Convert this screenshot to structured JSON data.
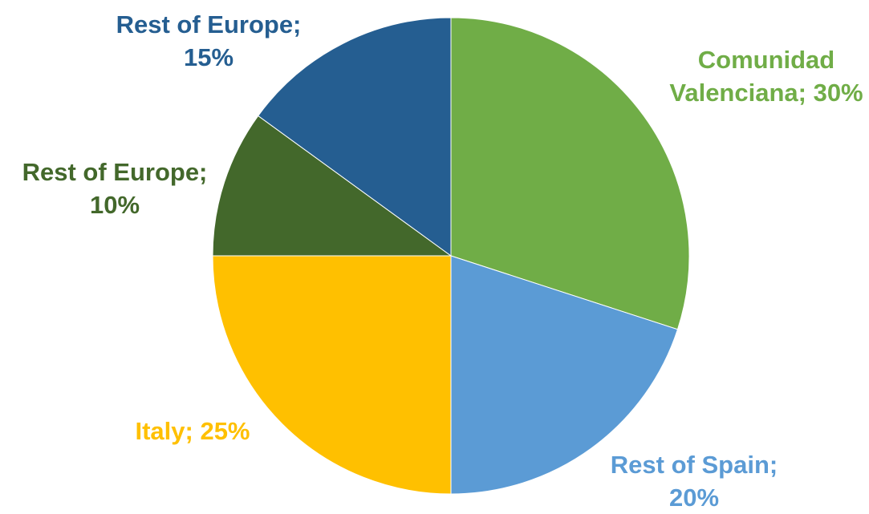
{
  "chart_data": {
    "type": "pie",
    "title": "",
    "start_angle_deg": 0,
    "direction": "clockwise",
    "slices": [
      {
        "label": "Comunidad Valenciana",
        "value": 30,
        "color": "#70AD47",
        "label_lines": [
          "Comunidad",
          "Valenciana; 30%"
        ]
      },
      {
        "label": "Rest of Spain",
        "value": 20,
        "color": "#5B9BD5",
        "label_lines": [
          "Rest of Spain;",
          "20%"
        ]
      },
      {
        "label": "Italy",
        "value": 25,
        "color": "#FFC000",
        "label_lines": [
          "Italy; 25%"
        ]
      },
      {
        "label": "Rest of Europe",
        "value": 10,
        "color": "#43682B",
        "label_lines": [
          "Rest of Europe;",
          "10%"
        ]
      },
      {
        "label": "Rest of Europe",
        "value": 15,
        "color": "#255E91",
        "label_lines": [
          "Rest of Europe;",
          "15%"
        ]
      }
    ]
  }
}
